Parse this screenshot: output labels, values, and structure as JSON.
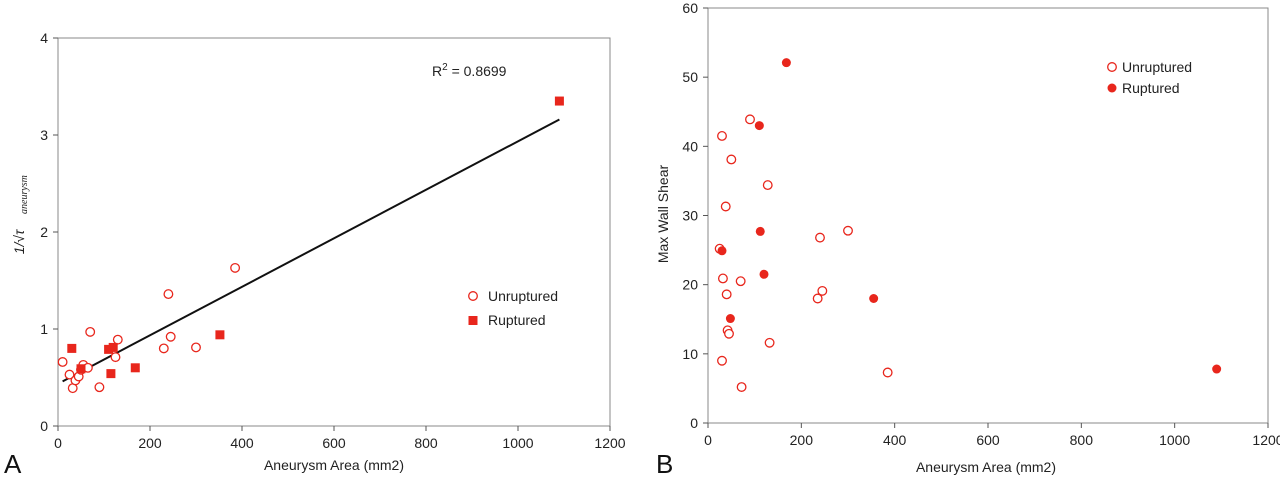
{
  "chart_data": [
    {
      "panel": "A",
      "type": "scatter",
      "xlabel": "Aneurysm Area (mm2)",
      "ylabel": "1/√τ_aneurysm",
      "ylabel_main": "1/√τ",
      "ylabel_sub": "aneurysm",
      "xlim": [
        0,
        1200
      ],
      "ylim": [
        0,
        4
      ],
      "xticks": [
        "0",
        "200",
        "400",
        "600",
        "800",
        "1000",
        "1200"
      ],
      "yticks": [
        "0",
        "1",
        "2",
        "3",
        "4"
      ],
      "grid": false,
      "legend_position": "right-middle",
      "r2_text": "R",
      "r2_sup": "2",
      "r2_value": " = 0.8699",
      "trendline": {
        "x": [
          10,
          1090
        ],
        "y": [
          0.46,
          3.16
        ]
      },
      "series": [
        {
          "name": "Unruptured",
          "marker": "open-circle",
          "color": "#e8261c",
          "x": [
            10,
            25,
            32,
            38,
            45,
            50,
            55,
            65,
            70,
            90,
            125,
            130,
            230,
            240,
            245,
            300,
            385
          ],
          "y": [
            0.66,
            0.53,
            0.39,
            0.47,
            0.51,
            0.58,
            0.63,
            0.6,
            0.97,
            0.4,
            0.71,
            0.89,
            0.8,
            1.36,
            0.92,
            0.81,
            1.63
          ]
        },
        {
          "name": "Ruptured",
          "marker": "filled-square",
          "color": "#e8261c",
          "x": [
            30,
            50,
            110,
            115,
            120,
            168,
            352,
            1090
          ],
          "y": [
            0.8,
            0.59,
            0.79,
            0.54,
            0.81,
            0.6,
            0.94,
            3.35
          ]
        }
      ]
    },
    {
      "panel": "B",
      "type": "scatter",
      "xlabel": "Aneurysm Area (mm2)",
      "ylabel": "Max Wall Shear",
      "xlim": [
        0,
        1200
      ],
      "ylim": [
        0,
        60
      ],
      "xticks": [
        "0",
        "200",
        "400",
        "600",
        "800",
        "1000",
        "1200"
      ],
      "yticks": [
        "0",
        "10",
        "20",
        "30",
        "40",
        "50",
        "60"
      ],
      "grid": false,
      "legend_position": "top-right",
      "series": [
        {
          "name": "Unruptured",
          "marker": "open-circle",
          "color": "#e8261c",
          "x": [
            25,
            30,
            30,
            32,
            38,
            40,
            42,
            45,
            50,
            70,
            72,
            90,
            128,
            132,
            235,
            240,
            245,
            300,
            385
          ],
          "y": [
            25.2,
            41.5,
            9.0,
            20.9,
            31.3,
            18.6,
            13.4,
            12.9,
            38.1,
            20.5,
            5.2,
            43.9,
            34.4,
            11.6,
            18.0,
            26.8,
            19.1,
            27.8,
            7.3
          ]
        },
        {
          "name": "Ruptured",
          "marker": "filled-circle",
          "color": "#e8261c",
          "x": [
            30,
            48,
            110,
            112,
            120,
            168,
            355,
            1090
          ],
          "y": [
            24.9,
            15.1,
            43.0,
            27.7,
            21.5,
            52.1,
            18.0,
            7.8
          ]
        }
      ]
    }
  ],
  "panel_labels": {
    "a": "A",
    "b": "B"
  }
}
